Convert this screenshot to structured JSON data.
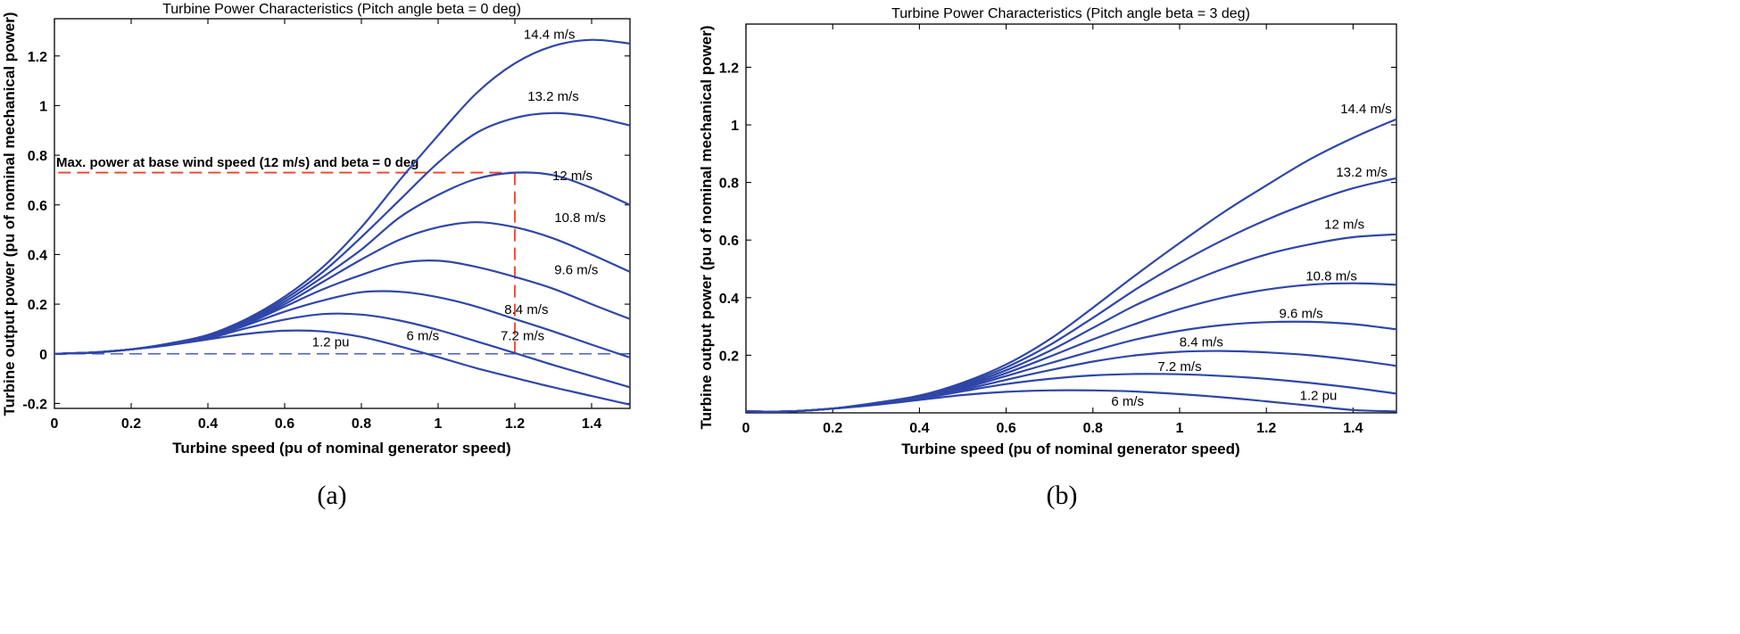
{
  "chart_data": [
    {
      "type": "line",
      "title": "Turbine Power Characteristics (Pitch angle beta = 0 deg)",
      "xlabel": "Turbine speed (pu of nominal generator speed)",
      "ylabel": "Turbine output power (pu of nominal mechanical power)",
      "xlim": [
        0,
        1.5
      ],
      "ylim": [
        -0.22,
        1.35
      ],
      "xticks": [
        0,
        0.2,
        0.4,
        0.6,
        0.8,
        1,
        1.2,
        1.4
      ],
      "xtick_labels": [
        "0",
        "0.2",
        "0.4",
        "0.6",
        "0.8",
        "1",
        "1.2",
        "1.4"
      ],
      "yticks": [
        -0.2,
        0,
        0.2,
        0.4,
        0.6,
        0.8,
        1,
        1.2
      ],
      "ytick_labels": [
        "-0.2",
        "0",
        "0.2",
        "0.4",
        "0.6",
        "0.8",
        "1",
        "1.2"
      ],
      "caption": "(a)",
      "curve_color": "#2f46a8",
      "x": [
        0,
        0.1,
        0.2,
        0.3,
        0.4,
        0.5,
        0.6,
        0.7,
        0.8,
        0.9,
        1.0,
        1.1,
        1.2,
        1.3,
        1.4,
        1.5
      ],
      "series": [
        {
          "name": "6 m/s",
          "values": [
            0,
            0.005,
            0.018,
            0.035,
            0.058,
            0.08,
            0.093,
            0.09,
            0.068,
            0.03,
            -0.013,
            -0.058,
            -0.097,
            -0.135,
            -0.17,
            -0.205
          ]
        },
        {
          "name": "7.2 m/s",
          "values": [
            0,
            0.005,
            0.018,
            0.036,
            0.062,
            0.103,
            0.138,
            0.16,
            0.158,
            0.134,
            0.096,
            0.05,
            0.003,
            -0.045,
            -0.09,
            -0.135
          ]
        },
        {
          "name": "8.4 m/s",
          "values": [
            0,
            0.005,
            0.018,
            0.037,
            0.065,
            0.115,
            0.17,
            0.215,
            0.248,
            0.25,
            0.228,
            0.19,
            0.14,
            0.09,
            0.037,
            -0.015
          ]
        },
        {
          "name": "9.6 m/s",
          "values": [
            0,
            0.005,
            0.018,
            0.038,
            0.068,
            0.12,
            0.19,
            0.26,
            0.318,
            0.365,
            0.375,
            0.35,
            0.31,
            0.262,
            0.2,
            0.14
          ]
        },
        {
          "name": "10.8 m/s",
          "values": [
            0,
            0.005,
            0.018,
            0.039,
            0.07,
            0.125,
            0.2,
            0.29,
            0.38,
            0.46,
            0.51,
            0.53,
            0.51,
            0.465,
            0.4,
            0.33
          ]
        },
        {
          "name": "12 m/s",
          "values": [
            0,
            0.005,
            0.018,
            0.04,
            0.072,
            0.13,
            0.21,
            0.31,
            0.42,
            0.55,
            0.64,
            0.705,
            0.73,
            0.72,
            0.668,
            0.6
          ]
        },
        {
          "name": "13.2 m/s",
          "values": [
            0,
            0.005,
            0.018,
            0.041,
            0.074,
            0.135,
            0.22,
            0.33,
            0.47,
            0.62,
            0.77,
            0.89,
            0.95,
            0.97,
            0.955,
            0.92
          ]
        },
        {
          "name": "14.4 m/s",
          "values": [
            0,
            0.005,
            0.018,
            0.042,
            0.076,
            0.14,
            0.23,
            0.35,
            0.51,
            0.7,
            0.88,
            1.05,
            1.17,
            1.24,
            1.265,
            1.25
          ]
        }
      ],
      "annotations": {
        "max_power_label": "Max. power at base wind speed (12 m/s) and beta = 0 deg",
        "max_power_point": {
          "x": 1.2,
          "y": 0.73
        },
        "max_power_color": "#e8442a",
        "base_speed_label": "1.2 pu",
        "zero_line_color": "#3b4fc0"
      }
    },
    {
      "type": "line",
      "title": "Turbine Power Characteristics (Pitch angle beta = 3 deg)",
      "xlabel": "Turbine speed (pu of nominal generator speed)",
      "ylabel": "Turbine output power (pu of nominal mechanical power)",
      "xlim": [
        0,
        1.5
      ],
      "ylim": [
        0,
        1.35
      ],
      "xticks": [
        0,
        0.2,
        0.4,
        0.6,
        0.8,
        1,
        1.2,
        1.4
      ],
      "xtick_labels": [
        "0",
        "0.2",
        "0.4",
        "0.6",
        "0.8",
        "1",
        "1.2",
        "1.4"
      ],
      "yticks": [
        0.2,
        0.4,
        0.6,
        0.8,
        1,
        1.2
      ],
      "ytick_labels": [
        "0.2",
        "0.4",
        "0.6",
        "0.8",
        "1",
        "1.2"
      ],
      "caption": "(b)",
      "curve_color": "#2f46a8",
      "x": [
        0,
        0.1,
        0.2,
        0.3,
        0.4,
        0.5,
        0.6,
        0.7,
        0.8,
        0.9,
        1.0,
        1.1,
        1.2,
        1.3,
        1.4,
        1.5
      ],
      "series": [
        {
          "name": "6 m/s",
          "values": [
            0,
            0.005,
            0.015,
            0.028,
            0.045,
            0.062,
            0.073,
            0.078,
            0.078,
            0.074,
            0.065,
            0.054,
            0.04,
            0.025,
            0.01,
            -0.005
          ]
        },
        {
          "name": "7.2 m/s",
          "values": [
            0,
            0.005,
            0.015,
            0.029,
            0.048,
            0.075,
            0.1,
            0.118,
            0.13,
            0.135,
            0.134,
            0.128,
            0.118,
            0.104,
            0.087,
            0.067
          ]
        },
        {
          "name": "8.4 m/s",
          "values": [
            0,
            0.005,
            0.015,
            0.03,
            0.05,
            0.08,
            0.115,
            0.148,
            0.178,
            0.2,
            0.212,
            0.215,
            0.21,
            0.2,
            0.184,
            0.163
          ]
        },
        {
          "name": "9.6 m/s",
          "values": [
            0,
            0.005,
            0.015,
            0.031,
            0.052,
            0.085,
            0.128,
            0.172,
            0.215,
            0.255,
            0.285,
            0.305,
            0.315,
            0.316,
            0.308,
            0.29
          ]
        },
        {
          "name": "10.8 m/s",
          "values": [
            0,
            0.005,
            0.015,
            0.032,
            0.054,
            0.09,
            0.138,
            0.195,
            0.255,
            0.31,
            0.36,
            0.4,
            0.428,
            0.445,
            0.45,
            0.445
          ]
        },
        {
          "name": "12 m/s",
          "values": [
            0,
            0.005,
            0.015,
            0.033,
            0.056,
            0.095,
            0.148,
            0.215,
            0.295,
            0.375,
            0.44,
            0.5,
            0.55,
            0.585,
            0.61,
            0.62
          ]
        },
        {
          "name": "13.2 m/s",
          "values": [
            0,
            0.005,
            0.015,
            0.034,
            0.058,
            0.1,
            0.158,
            0.235,
            0.33,
            0.43,
            0.52,
            0.6,
            0.67,
            0.73,
            0.78,
            0.815
          ]
        },
        {
          "name": "14.4 m/s",
          "values": [
            0,
            0.005,
            0.015,
            0.035,
            0.06,
            0.105,
            0.168,
            0.255,
            0.365,
            0.48,
            0.59,
            0.695,
            0.79,
            0.88,
            0.955,
            1.02
          ]
        }
      ],
      "annotations": {
        "base_speed_label": "1.2 pu"
      }
    }
  ]
}
